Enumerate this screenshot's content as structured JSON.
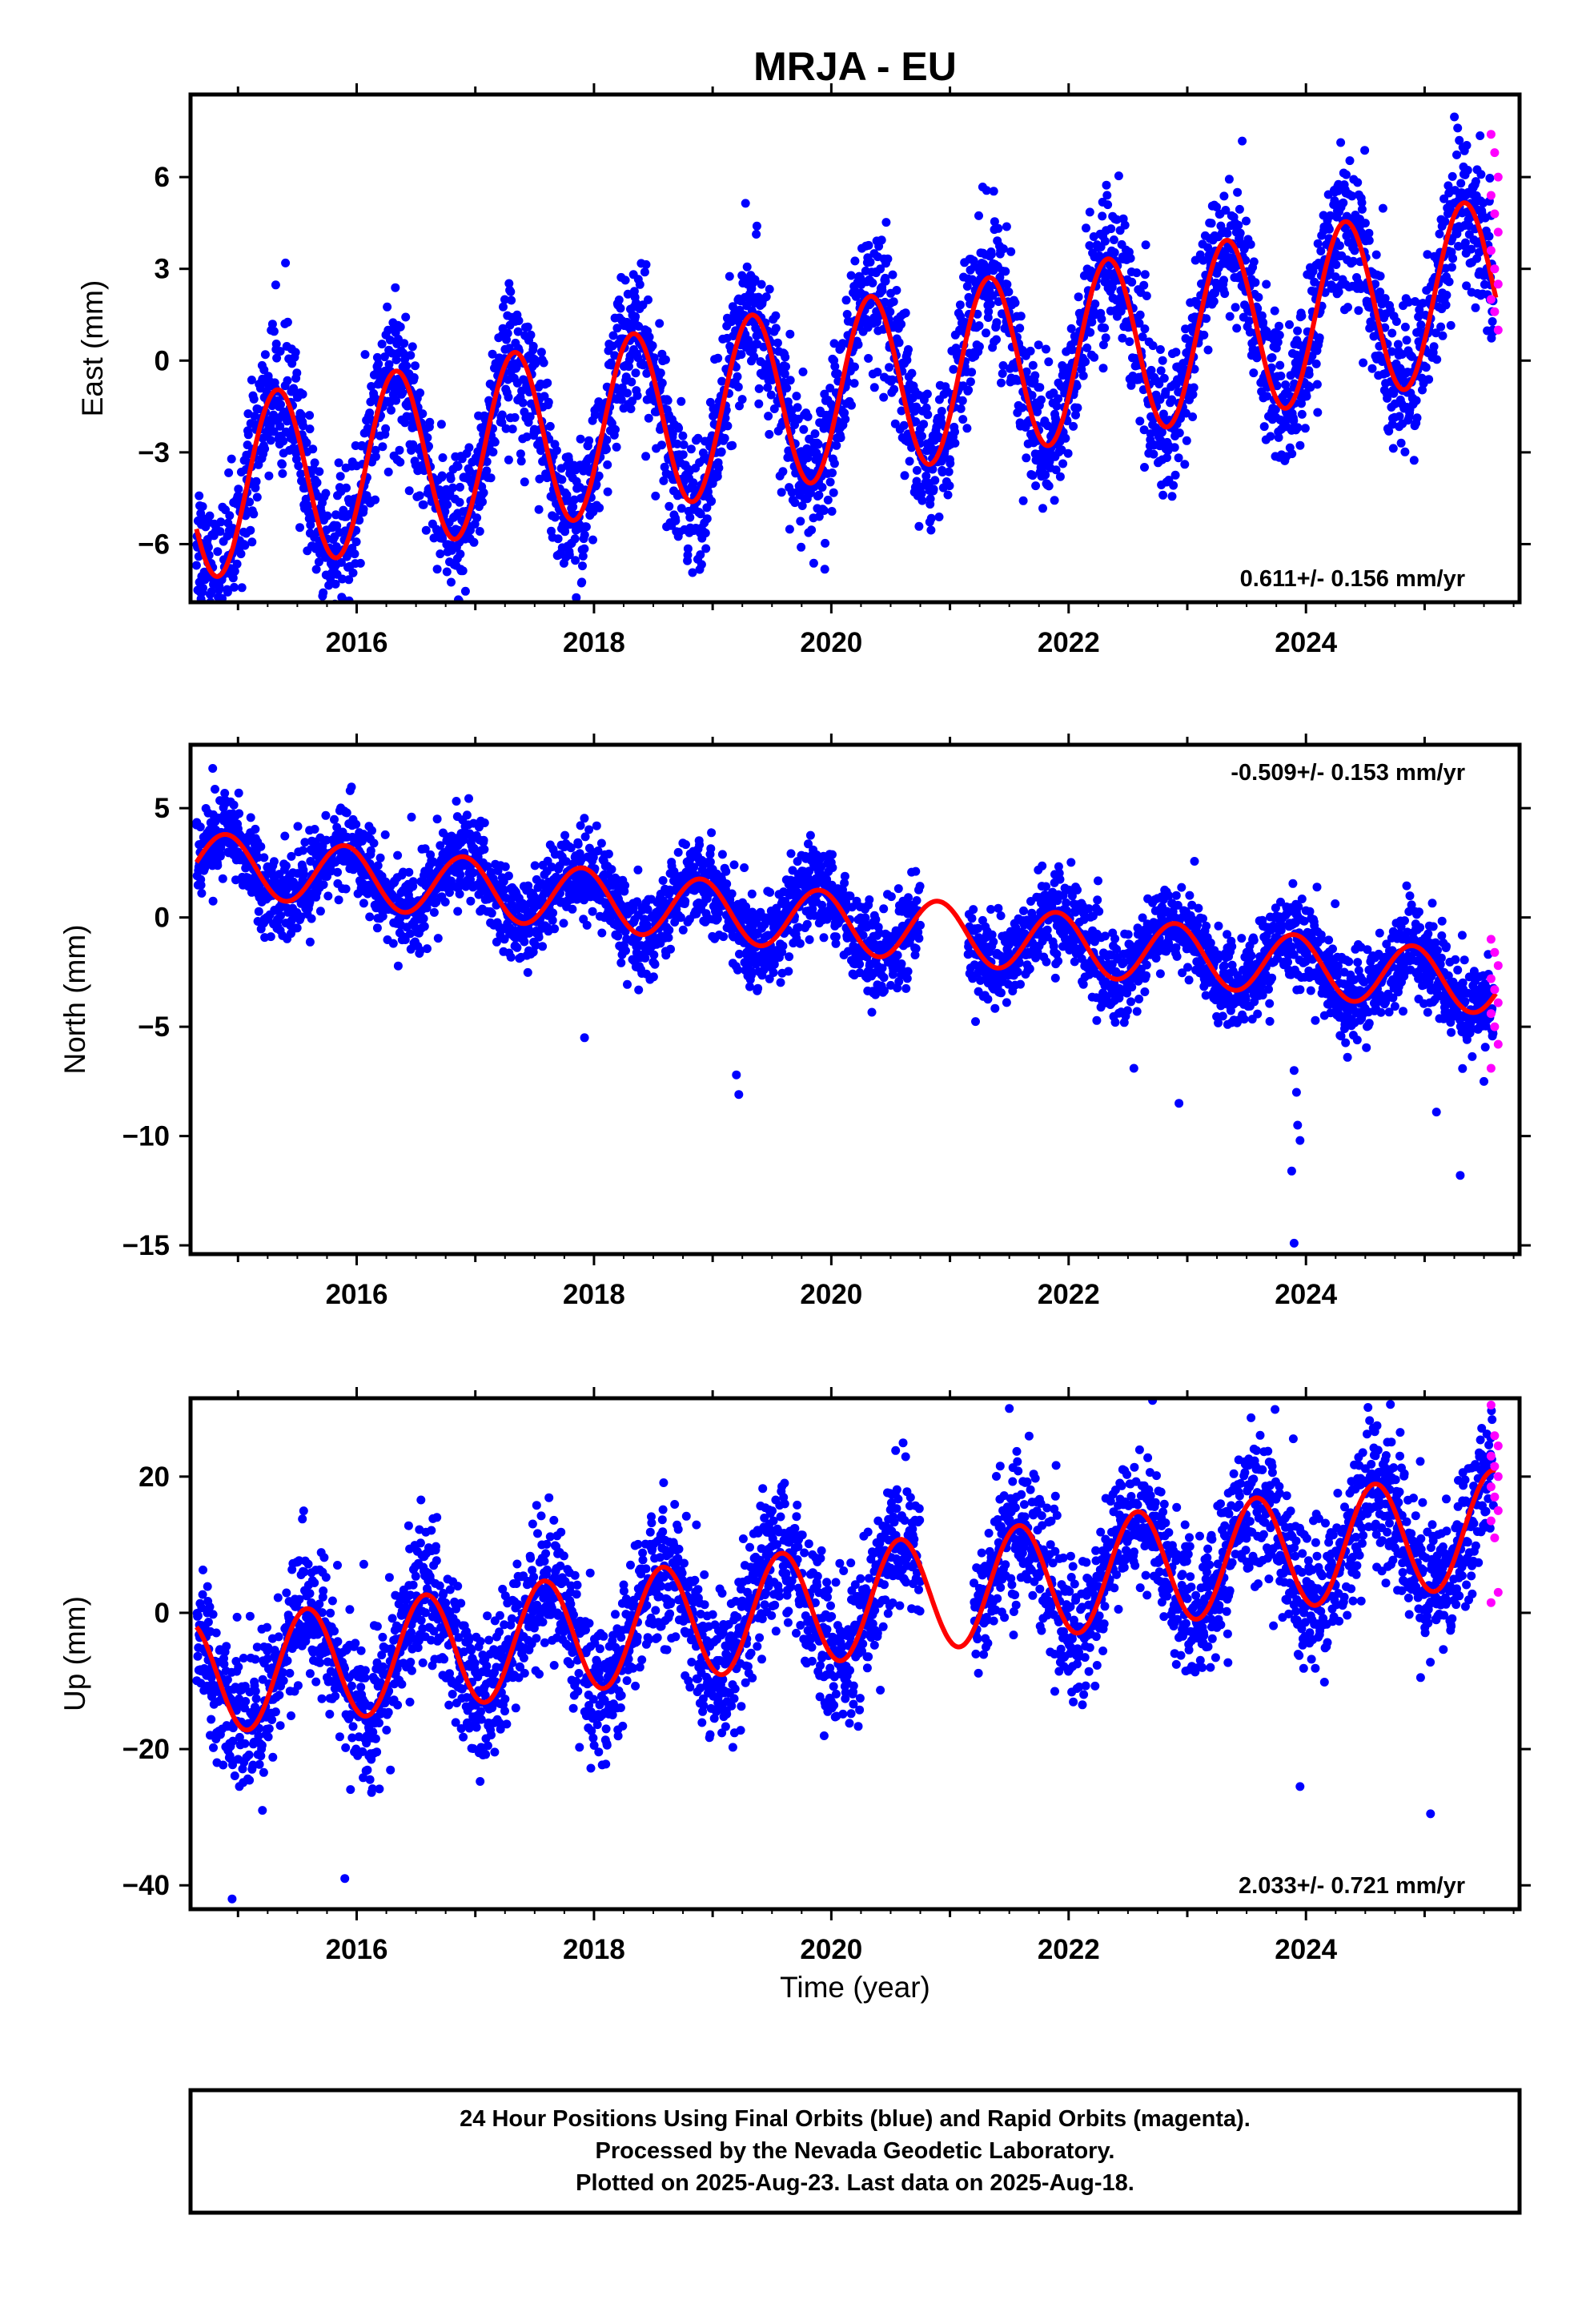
{
  "chart_data": {
    "title": "MRJA - EU",
    "type": "scatter",
    "xlabel": "Time (year)",
    "x_range": [
      2014.6,
      2025.8
    ],
    "x_tick_labels": [
      "2016",
      "2018",
      "2020",
      "2022",
      "2024"
    ],
    "series_legend": {
      "final_orbits_color": "#0000ff",
      "rapid_orbits_color": "#ff00ff",
      "model_color": "#ff0000"
    },
    "panels": [
      {
        "name": "east",
        "ylabel": "East (mm)",
        "ylim": [
          -7.9,
          8.7
        ],
        "y_tick_labels": [
          "−6",
          "−3",
          "0",
          "3",
          "6"
        ],
        "y_tick_values": [
          -6,
          -3,
          0,
          3,
          6
        ],
        "rate_text": "0.611+/- 0.156 mm/yr",
        "rate_position": "bottom-right",
        "model": {
          "offset": -1.0,
          "rate": 0.611,
          "t0": 2020.0,
          "amplitude": 2.9,
          "phase_year": 0.33
        },
        "data_range": [
          2014.65,
          2025.58
        ],
        "scatter_std": 1.15,
        "rapid_range": [
          2025.56,
          2025.62
        ],
        "rapid_values": [
          7.4,
          6.8,
          6.0,
          5.4,
          4.8,
          4.2,
          3.6,
          3.0,
          2.5,
          2.0,
          1.6,
          1.0
        ]
      },
      {
        "name": "north",
        "ylabel": "North (mm)",
        "ylim": [
          -15.4,
          7.9
        ],
        "y_tick_labels": [
          "5",
          "0",
          "−5",
          "−10",
          "−15"
        ],
        "y_tick_values": [
          5,
          0,
          -5,
          -10,
          -15
        ],
        "rate_text": "-0.509+/- 0.153 mm/yr",
        "rate_position": "top-right",
        "model": {
          "offset": -0.2,
          "rate": -0.509,
          "t0": 2020.0,
          "amplitude": 1.4,
          "phase_year": 0.9
        },
        "data_range": [
          2014.65,
          2025.58
        ],
        "data_gap": [
          2020.75,
          2021.15
        ],
        "scatter_std": 1.0,
        "outliers": [
          [
            2017.92,
            -5.5
          ],
          [
            2019.2,
            -7.2
          ],
          [
            2019.22,
            -8.1
          ],
          [
            2023.9,
            -7.0
          ],
          [
            2023.92,
            -8.0
          ],
          [
            2023.93,
            -9.5
          ],
          [
            2023.95,
            -10.2
          ],
          [
            2023.88,
            -11.6
          ],
          [
            2023.9,
            -14.9
          ],
          [
            2022.55,
            -6.9
          ],
          [
            2022.93,
            -8.5
          ],
          [
            2024.35,
            -6.4
          ],
          [
            2025.1,
            -8.9
          ],
          [
            2025.3,
            -11.8
          ],
          [
            2025.5,
            -7.5
          ]
        ],
        "rapid_range": [
          2025.56,
          2025.62
        ],
        "rapid_values": [
          -1.0,
          -1.6,
          -2.2,
          -2.8,
          -3.3,
          -3.9,
          -4.4,
          -5.0,
          -5.8,
          -6.9
        ]
      },
      {
        "name": "up",
        "ylabel": "Up (mm)",
        "ylim": [
          -43.5,
          31.5
        ],
        "y_tick_labels": [
          "20",
          "0",
          "−20",
          "−40"
        ],
        "y_tick_values": [
          20,
          0,
          -20,
          -40
        ],
        "rate_text": "2.033+/- 0.721 mm/yr",
        "rate_position": "bottom-right",
        "model": {
          "offset": 1.2,
          "rate": 2.033,
          "t0": 2020.0,
          "amplitude": 8.4,
          "phase_year": 0.58
        },
        "data_range": [
          2014.65,
          2025.58
        ],
        "data_gap": [
          2020.75,
          2021.2
        ],
        "scatter_std": 5.2,
        "outliers": [
          [
            2014.95,
            -42.0
          ],
          [
            2015.9,
            -39.0
          ],
          [
            2023.95,
            -25.5
          ],
          [
            2025.05,
            -29.5
          ],
          [
            2021.5,
            30.0
          ]
        ],
        "rapid_range": [
          2025.56,
          2025.62
        ],
        "rapid_values": [
          30.5,
          26.0,
          24.5,
          23.0,
          21.5,
          20.0,
          18.5,
          17.0,
          15.0,
          13.5,
          11.0,
          3.0,
          1.5
        ]
      }
    ]
  },
  "footer": {
    "line1": "24 Hour Positions Using Final Orbits (blue) and Rapid Orbits (magenta).",
    "line2": "Processed by the Nevada Geodetic Laboratory.",
    "line3": "Plotted on 2025-Aug-23. Last data on 2025-Aug-18."
  }
}
